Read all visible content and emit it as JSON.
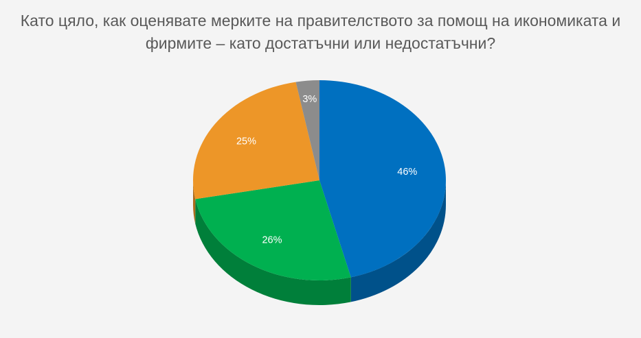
{
  "chart_data": {
    "type": "pie",
    "title_lines": [
      "Като цяло, как оценявате мерките на правителството за помощ на икономиката и",
      "фирмите – като достатъчни или недостатъчни?"
    ],
    "slices": [
      {
        "value": 46,
        "label": "46%",
        "color": "#0070c0"
      },
      {
        "value": 26,
        "label": "26%",
        "color": "#00b050"
      },
      {
        "value": 25,
        "label": "25%",
        "color": "#ed9628"
      },
      {
        "value": 3,
        "label": "3%",
        "color": "#8c8c8c"
      }
    ],
    "legend": "none",
    "style": "3d"
  }
}
